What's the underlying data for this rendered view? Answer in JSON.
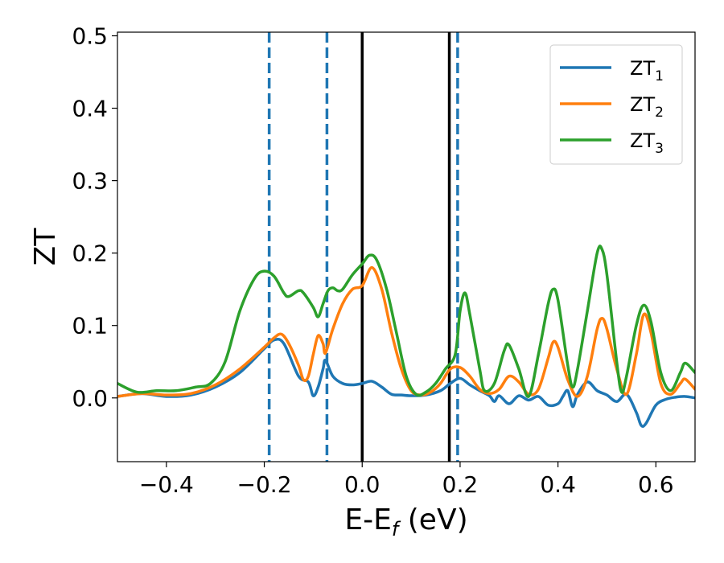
{
  "chart_data": {
    "type": "line",
    "xlabel": "E-E",
    "xlabel_sub": "f",
    "xlabel_unit": " (eV)",
    "ylabel": "ZT",
    "xlim": [
      -0.5,
      0.68
    ],
    "ylim": [
      -0.088,
      0.505
    ],
    "xticks": [
      -0.4,
      -0.2,
      0.0,
      0.2,
      0.4,
      0.6
    ],
    "xtick_labels": [
      "−0.4",
      "−0.2",
      "0.0",
      "0.2",
      "0.4",
      "0.6"
    ],
    "yticks": [
      0.0,
      0.1,
      0.2,
      0.3,
      0.4,
      0.5
    ],
    "ytick_labels": [
      "0.0",
      "0.1",
      "0.2",
      "0.3",
      "0.4",
      "0.5"
    ],
    "grid": false,
    "legend_position": "top-right",
    "vlines": [
      {
        "x": -0.19,
        "style": "dashed",
        "color": "#1f77b4"
      },
      {
        "x": -0.072,
        "style": "dashed",
        "color": "#1f77b4"
      },
      {
        "x": 0.0,
        "style": "solid",
        "color": "#000000"
      },
      {
        "x": 0.178,
        "style": "solid",
        "color": "#000000"
      },
      {
        "x": 0.195,
        "style": "dashed",
        "color": "#1f77b4"
      }
    ],
    "series": [
      {
        "name": "ZT",
        "name_sub": "1",
        "color": "#1f77b4",
        "points": [
          [
            -0.5,
            0.002
          ],
          [
            -0.45,
            0.006
          ],
          [
            -0.4,
            0.002
          ],
          [
            -0.35,
            0.004
          ],
          [
            -0.3,
            0.015
          ],
          [
            -0.25,
            0.035
          ],
          [
            -0.2,
            0.068
          ],
          [
            -0.18,
            0.08
          ],
          [
            -0.16,
            0.075
          ],
          [
            -0.13,
            0.03
          ],
          [
            -0.11,
            0.022
          ],
          [
            -0.1,
            0.003
          ],
          [
            -0.09,
            0.015
          ],
          [
            -0.08,
            0.04
          ],
          [
            -0.075,
            0.052
          ],
          [
            -0.06,
            0.03
          ],
          [
            -0.04,
            0.02
          ],
          [
            -0.02,
            0.018
          ],
          [
            0.0,
            0.02
          ],
          [
            0.02,
            0.023
          ],
          [
            0.04,
            0.015
          ],
          [
            0.06,
            0.005
          ],
          [
            0.08,
            0.004
          ],
          [
            0.1,
            0.003
          ],
          [
            0.13,
            0.004
          ],
          [
            0.16,
            0.01
          ],
          [
            0.18,
            0.02
          ],
          [
            0.2,
            0.027
          ],
          [
            0.22,
            0.018
          ],
          [
            0.24,
            0.01
          ],
          [
            0.26,
            0.003
          ],
          [
            0.27,
            -0.005
          ],
          [
            0.28,
            0.003
          ],
          [
            0.3,
            -0.008
          ],
          [
            0.32,
            0.003
          ],
          [
            0.34,
            -0.003
          ],
          [
            0.36,
            0.002
          ],
          [
            0.38,
            -0.01
          ],
          [
            0.4,
            -0.008
          ],
          [
            0.41,
            0.002
          ],
          [
            0.42,
            0.01
          ],
          [
            0.43,
            -0.012
          ],
          [
            0.44,
            0.005
          ],
          [
            0.46,
            0.022
          ],
          [
            0.48,
            0.01
          ],
          [
            0.5,
            0.004
          ],
          [
            0.52,
            -0.005
          ],
          [
            0.54,
            0.005
          ],
          [
            0.56,
            -0.02
          ],
          [
            0.57,
            -0.038
          ],
          [
            0.58,
            -0.035
          ],
          [
            0.6,
            -0.01
          ],
          [
            0.62,
            -0.002
          ],
          [
            0.64,
            0.001
          ],
          [
            0.66,
            0.002
          ],
          [
            0.68,
            0.0
          ]
        ]
      },
      {
        "name": "ZT",
        "name_sub": "2",
        "color": "#ff7f0e",
        "points": [
          [
            -0.5,
            0.002
          ],
          [
            -0.45,
            0.006
          ],
          [
            -0.4,
            0.004
          ],
          [
            -0.35,
            0.006
          ],
          [
            -0.3,
            0.018
          ],
          [
            -0.25,
            0.04
          ],
          [
            -0.2,
            0.07
          ],
          [
            -0.18,
            0.083
          ],
          [
            -0.165,
            0.088
          ],
          [
            -0.15,
            0.075
          ],
          [
            -0.13,
            0.045
          ],
          [
            -0.12,
            0.025
          ],
          [
            -0.11,
            0.03
          ],
          [
            -0.1,
            0.06
          ],
          [
            -0.09,
            0.086
          ],
          [
            -0.08,
            0.075
          ],
          [
            -0.075,
            0.062
          ],
          [
            -0.06,
            0.095
          ],
          [
            -0.04,
            0.13
          ],
          [
            -0.02,
            0.15
          ],
          [
            0.0,
            0.155
          ],
          [
            0.02,
            0.18
          ],
          [
            0.04,
            0.15
          ],
          [
            0.06,
            0.09
          ],
          [
            0.08,
            0.04
          ],
          [
            0.1,
            0.01
          ],
          [
            0.12,
            0.004
          ],
          [
            0.14,
            0.008
          ],
          [
            0.16,
            0.02
          ],
          [
            0.18,
            0.04
          ],
          [
            0.2,
            0.042
          ],
          [
            0.22,
            0.03
          ],
          [
            0.24,
            0.012
          ],
          [
            0.26,
            0.006
          ],
          [
            0.28,
            0.012
          ],
          [
            0.3,
            0.03
          ],
          [
            0.32,
            0.022
          ],
          [
            0.34,
            0.005
          ],
          [
            0.36,
            0.012
          ],
          [
            0.38,
            0.055
          ],
          [
            0.39,
            0.077
          ],
          [
            0.4,
            0.07
          ],
          [
            0.42,
            0.025
          ],
          [
            0.44,
            0.002
          ],
          [
            0.46,
            0.03
          ],
          [
            0.48,
            0.095
          ],
          [
            0.49,
            0.11
          ],
          [
            0.5,
            0.095
          ],
          [
            0.52,
            0.04
          ],
          [
            0.54,
            0.005
          ],
          [
            0.56,
            0.06
          ],
          [
            0.575,
            0.115
          ],
          [
            0.59,
            0.09
          ],
          [
            0.61,
            0.02
          ],
          [
            0.63,
            0.005
          ],
          [
            0.65,
            0.02
          ],
          [
            0.66,
            0.026
          ],
          [
            0.68,
            0.012
          ]
        ]
      },
      {
        "name": "ZT",
        "name_sub": "3",
        "color": "#2ca02c",
        "points": [
          [
            -0.5,
            0.02
          ],
          [
            -0.46,
            0.008
          ],
          [
            -0.42,
            0.01
          ],
          [
            -0.38,
            0.01
          ],
          [
            -0.34,
            0.015
          ],
          [
            -0.31,
            0.02
          ],
          [
            -0.28,
            0.05
          ],
          [
            -0.25,
            0.12
          ],
          [
            -0.22,
            0.165
          ],
          [
            -0.2,
            0.175
          ],
          [
            -0.18,
            0.168
          ],
          [
            -0.16,
            0.145
          ],
          [
            -0.15,
            0.14
          ],
          [
            -0.13,
            0.148
          ],
          [
            -0.12,
            0.145
          ],
          [
            -0.1,
            0.125
          ],
          [
            -0.09,
            0.112
          ],
          [
            -0.08,
            0.13
          ],
          [
            -0.07,
            0.148
          ],
          [
            -0.06,
            0.152
          ],
          [
            -0.05,
            0.148
          ],
          [
            -0.04,
            0.15
          ],
          [
            -0.02,
            0.17
          ],
          [
            0.0,
            0.185
          ],
          [
            0.015,
            0.197
          ],
          [
            0.03,
            0.19
          ],
          [
            0.05,
            0.15
          ],
          [
            0.07,
            0.09
          ],
          [
            0.09,
            0.03
          ],
          [
            0.11,
            0.005
          ],
          [
            0.13,
            0.008
          ],
          [
            0.15,
            0.02
          ],
          [
            0.17,
            0.04
          ],
          [
            0.19,
            0.06
          ],
          [
            0.2,
            0.12
          ],
          [
            0.21,
            0.145
          ],
          [
            0.22,
            0.115
          ],
          [
            0.24,
            0.04
          ],
          [
            0.25,
            0.01
          ],
          [
            0.27,
            0.02
          ],
          [
            0.29,
            0.065
          ],
          [
            0.3,
            0.073
          ],
          [
            0.32,
            0.04
          ],
          [
            0.34,
            0.002
          ],
          [
            0.36,
            0.06
          ],
          [
            0.38,
            0.13
          ],
          [
            0.39,
            0.15
          ],
          [
            0.4,
            0.135
          ],
          [
            0.42,
            0.045
          ],
          [
            0.43,
            0.015
          ],
          [
            0.44,
            0.04
          ],
          [
            0.46,
            0.12
          ],
          [
            0.48,
            0.2
          ],
          [
            0.49,
            0.205
          ],
          [
            0.5,
            0.17
          ],
          [
            0.52,
            0.05
          ],
          [
            0.53,
            0.008
          ],
          [
            0.54,
            0.03
          ],
          [
            0.56,
            0.1
          ],
          [
            0.575,
            0.128
          ],
          [
            0.59,
            0.105
          ],
          [
            0.61,
            0.035
          ],
          [
            0.63,
            0.01
          ],
          [
            0.65,
            0.035
          ],
          [
            0.66,
            0.048
          ],
          [
            0.68,
            0.035
          ]
        ]
      }
    ]
  }
}
